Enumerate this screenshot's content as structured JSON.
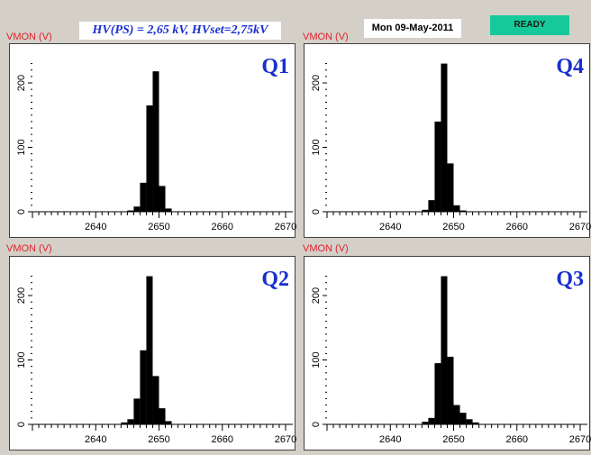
{
  "header": {
    "hv_text": "HV(PS) = 2,65 kV, HVset=2,75kV",
    "date": "Mon  09-May-2011",
    "status": "READY",
    "status_color": "#16c99a"
  },
  "axis_label": "VMON (V)",
  "chart_data": [
    {
      "type": "bar",
      "quadrant": "Q1",
      "ylabel": "VMON (V)",
      "xlim": [
        2630,
        2670
      ],
      "ylim": [
        0,
        235
      ],
      "x_ticks": [
        "2640",
        "2650",
        "2660",
        "2670"
      ],
      "y_ticks": [
        "0",
        "100",
        "200"
      ],
      "bin_width": 1,
      "bins": [
        {
          "x": 2645,
          "y": 2
        },
        {
          "x": 2646,
          "y": 8
        },
        {
          "x": 2647,
          "y": 45
        },
        {
          "x": 2648,
          "y": 165
        },
        {
          "x": 2649,
          "y": 218
        },
        {
          "x": 2650,
          "y": 40
        },
        {
          "x": 2651,
          "y": 5
        }
      ]
    },
    {
      "type": "bar",
      "quadrant": "Q4",
      "ylabel": "VMON (V)",
      "xlim": [
        2630,
        2670
      ],
      "ylim": [
        0,
        235
      ],
      "x_ticks": [
        "2640",
        "2650",
        "2660",
        "2670"
      ],
      "y_ticks": [
        "0",
        "100",
        "200"
      ],
      "bin_width": 1,
      "bins": [
        {
          "x": 2645,
          "y": 3
        },
        {
          "x": 2646,
          "y": 18
        },
        {
          "x": 2647,
          "y": 140
        },
        {
          "x": 2648,
          "y": 230
        },
        {
          "x": 2649,
          "y": 75
        },
        {
          "x": 2650,
          "y": 10
        },
        {
          "x": 2651,
          "y": 2
        }
      ]
    },
    {
      "type": "bar",
      "quadrant": "Q2",
      "ylabel": "VMON (V)",
      "xlim": [
        2630,
        2670
      ],
      "ylim": [
        0,
        235
      ],
      "x_ticks": [
        "2640",
        "2650",
        "2660",
        "2670"
      ],
      "y_ticks": [
        "0",
        "100",
        "200"
      ],
      "bin_width": 1,
      "bins": [
        {
          "x": 2644,
          "y": 3
        },
        {
          "x": 2645,
          "y": 8
        },
        {
          "x": 2646,
          "y": 40
        },
        {
          "x": 2647,
          "y": 115
        },
        {
          "x": 2648,
          "y": 230
        },
        {
          "x": 2649,
          "y": 75
        },
        {
          "x": 2650,
          "y": 25
        },
        {
          "x": 2651,
          "y": 5
        }
      ]
    },
    {
      "type": "bar",
      "quadrant": "Q3",
      "ylabel": "VMON (V)",
      "xlim": [
        2630,
        2670
      ],
      "ylim": [
        0,
        235
      ],
      "x_ticks": [
        "2640",
        "2650",
        "2660",
        "2670"
      ],
      "y_ticks": [
        "0",
        "100",
        "200"
      ],
      "bin_width": 1,
      "bins": [
        {
          "x": 2645,
          "y": 4
        },
        {
          "x": 2646,
          "y": 10
        },
        {
          "x": 2647,
          "y": 95
        },
        {
          "x": 2648,
          "y": 230
        },
        {
          "x": 2649,
          "y": 105
        },
        {
          "x": 2650,
          "y": 30
        },
        {
          "x": 2651,
          "y": 18
        },
        {
          "x": 2652,
          "y": 8
        },
        {
          "x": 2653,
          "y": 3
        }
      ]
    }
  ]
}
